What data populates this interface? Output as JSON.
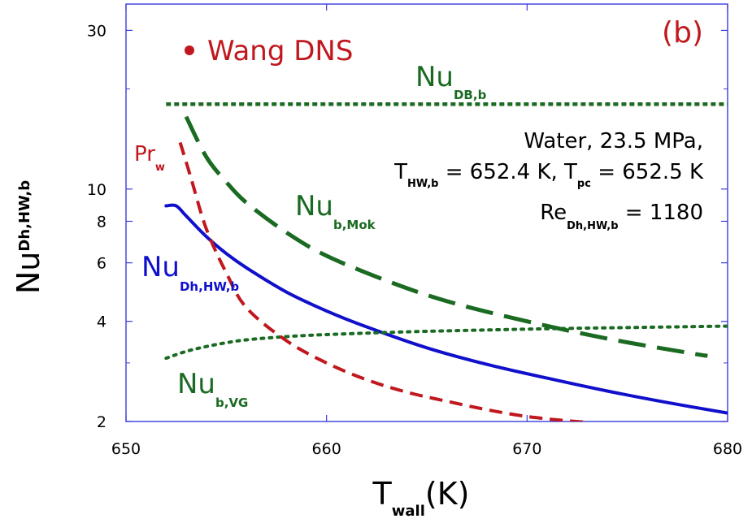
{
  "chart_data": {
    "type": "line",
    "panel_label": "(b)",
    "xlabel": "T",
    "xlabel_sub": "wall",
    "xlabel_unit": "(K)",
    "ylabel": "Nu",
    "ylabel_sub": "Dh,HW,b",
    "xlim": [
      650,
      680
    ],
    "ylim": [
      2,
      36
    ],
    "yscale": "log",
    "x_ticks": [
      650,
      660,
      670,
      680
    ],
    "x_tick_labels": [
      "650",
      "660",
      "670",
      "680"
    ],
    "y_ticks": [
      2,
      4,
      6,
      8,
      10,
      30
    ],
    "y_tick_labels": [
      "2",
      "4",
      "6",
      "8",
      "10",
      "30"
    ],
    "y_minor_ticks": [
      3,
      20
    ],
    "legend": {
      "marker_label": "Wang DNS",
      "marker_color": "#c0181e"
    },
    "annotation": {
      "line1": "Water, 23.5 MPa,",
      "line2": {
        "a": "T",
        "a_sub": "HW,b",
        "b": " = 652.4 K, T",
        "b_sub": "pc",
        "c": " = 652.5 K"
      },
      "line3": {
        "a": "Re",
        "a_sub": "Dh,HW,b",
        "b": " = 1180"
      }
    },
    "series": [
      {
        "label_main": "Nu",
        "label_sub": "Dh,HW,b",
        "color": "#1010cc",
        "style": "solid",
        "x": [
          652,
          652.5,
          653,
          654,
          655,
          656,
          658,
          660,
          662,
          665,
          668,
          671,
          674,
          677,
          680
        ],
        "y": [
          8.9,
          8.9,
          8.3,
          7.2,
          6.4,
          5.8,
          4.9,
          4.3,
          3.85,
          3.33,
          2.97,
          2.7,
          2.47,
          2.28,
          2.12
        ]
      },
      {
        "label_main": "Nu",
        "label_sub": "b,Mok",
        "color": "#1a6a22",
        "style": "long-dash",
        "x": [
          653,
          654,
          655,
          656,
          658,
          660,
          663,
          666,
          670,
          674,
          678,
          679
        ],
        "y": [
          16.5,
          12.5,
          10.5,
          9.1,
          7.4,
          6.3,
          5.3,
          4.6,
          4.0,
          3.55,
          3.22,
          3.15
        ]
      },
      {
        "label_main": "Nu",
        "label_sub": "DB,b",
        "color": "#1a6a22",
        "style": "short-dash",
        "x": [
          652,
          680
        ],
        "y": [
          18.0,
          18.0
        ]
      },
      {
        "label_main": "Nu",
        "label_sub": "b,VG",
        "color": "#1a6a22",
        "style": "dotted",
        "x": [
          652,
          653,
          654,
          655,
          656,
          658,
          660,
          664,
          668,
          672,
          676,
          680
        ],
        "y": [
          3.1,
          3.25,
          3.36,
          3.45,
          3.52,
          3.6,
          3.65,
          3.72,
          3.77,
          3.81,
          3.84,
          3.87
        ]
      },
      {
        "label_main": "Pr",
        "label_sub": "w",
        "color": "#c0181e",
        "style": "dash",
        "x": [
          652.7,
          653.2,
          654,
          655,
          656,
          658,
          660,
          662,
          664,
          666,
          668,
          670,
          672,
          673
        ],
        "y": [
          13.8,
          11.0,
          7.6,
          5.6,
          4.4,
          3.5,
          3.0,
          2.67,
          2.45,
          2.3,
          2.17,
          2.07,
          2.01,
          1.99
        ]
      }
    ]
  }
}
